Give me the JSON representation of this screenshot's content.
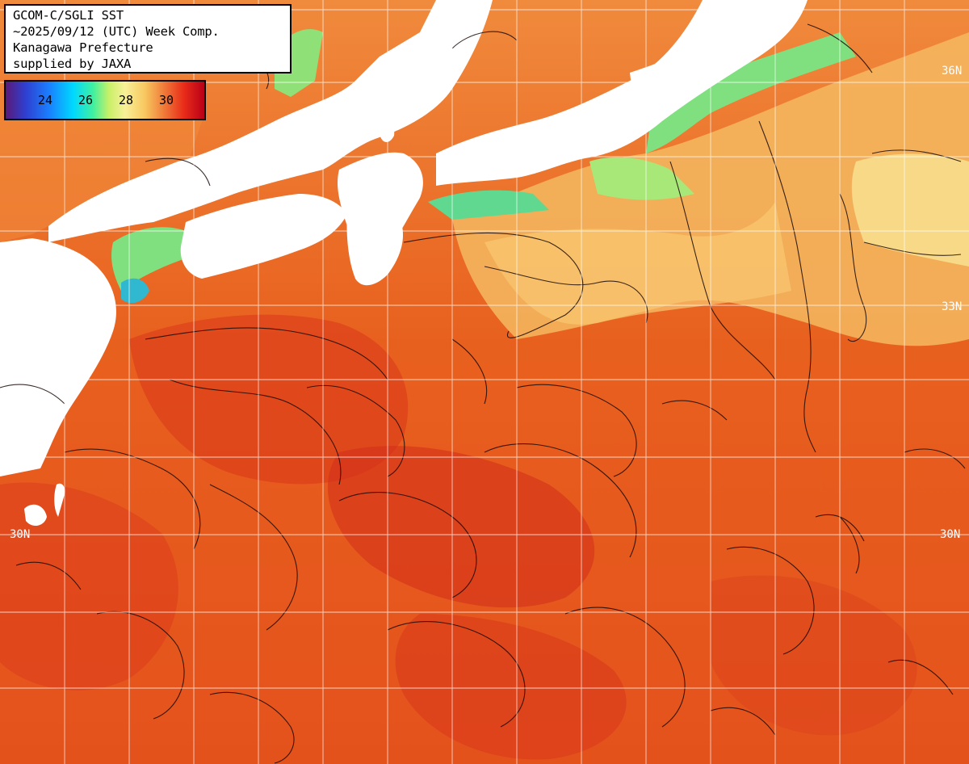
{
  "info": {
    "line1": "GCOM-C/SGLI SST",
    "line2": "~2025/09/12 (UTC) Week Comp.",
    "line3": "Kanagawa Prefecture",
    "line4": "supplied by JAXA"
  },
  "colorbar": {
    "ticks": [
      "24",
      "26",
      "28",
      "30"
    ]
  },
  "lat_labels": {
    "n36_right": "36N",
    "n33_right": "33N",
    "n30_left": "30N",
    "n30_right": "30N"
  },
  "colors": {
    "land": "#ffffff",
    "sea_warm": "#e85a1c",
    "sea_hot": "#d8361a",
    "sea_mild": "#f08a3c",
    "sea_cool": "#f8d878",
    "coast_green": "#90e878",
    "coast_cyan": "#30c8c0",
    "grid": "#ffffff",
    "contour": "#1a0a08"
  }
}
